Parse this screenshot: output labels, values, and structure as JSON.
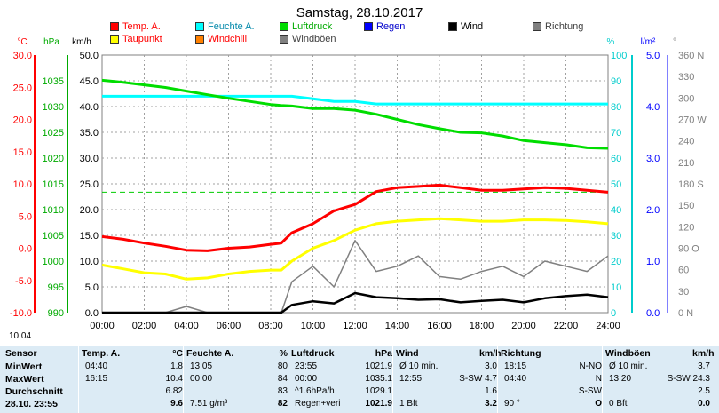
{
  "title": "Samstag, 28.10.2017",
  "legend": [
    {
      "label": "Temp. A.",
      "color": "#ff0000"
    },
    {
      "label": "Taupunkt",
      "color": "#ffff00"
    },
    {
      "label": "Feuchte A.",
      "color": "#00ffff"
    },
    {
      "label": "Windchill",
      "color": "#ff8000"
    },
    {
      "label": "Luftdruck",
      "color": "#00dd00"
    },
    {
      "label": "Windböen",
      "color": "#808080"
    },
    {
      "label": "Regen",
      "color": "#0000ff"
    },
    {
      "label": "Wind",
      "color": "#000000"
    },
    {
      "label": "Richtung",
      "color": "#808080"
    }
  ],
  "axes": {
    "temp": {
      "unit": "°C",
      "ticks": [
        "30.0",
        "25.0",
        "20.0",
        "15.0",
        "10.0",
        "5.0",
        "0.0",
        "-5.0",
        "-10.0"
      ],
      "color": "#ff0000"
    },
    "hpa": {
      "unit": "hPa",
      "ticks": [
        "1035",
        "1030",
        "1025",
        "1020",
        "1015",
        "1010",
        "1005",
        "1000",
        "995",
        "990"
      ],
      "color": "#00aa00"
    },
    "wind": {
      "unit": "km/h",
      "ticks": [
        "50.0",
        "45.0",
        "40.0",
        "35.0",
        "30.0",
        "25.0",
        "20.0",
        "15.0",
        "10.0",
        "5.0",
        "0.0"
      ],
      "color": "#000000"
    },
    "humidity": {
      "unit": "%",
      "ticks": [
        "100",
        "90",
        "80",
        "70",
        "60",
        "50",
        "40",
        "30",
        "20",
        "10",
        "0"
      ],
      "color": "#00cccc"
    },
    "rain": {
      "unit": "l/m²",
      "ticks": [
        "5.0",
        "4.0",
        "3.0",
        "2.0",
        "1.0",
        "0.0"
      ],
      "color": "#0000ff"
    },
    "direction": {
      "unit": "°",
      "ticks": [
        "360 N",
        "330",
        "300",
        "270 W",
        "240",
        "210",
        "180 S",
        "150",
        "120",
        "90 O",
        "60",
        "30",
        "0 N"
      ],
      "color": "#808080"
    },
    "x_ticks": [
      "00:00",
      "02:00",
      "04:00",
      "06:00",
      "08:00",
      "10:00",
      "12:00",
      "14:00",
      "16:00",
      "18:00",
      "20:00",
      "22:00",
      "24:00"
    ]
  },
  "current_time": "10:04",
  "chart_data": {
    "type": "line",
    "title": "Samstag, 28.10.2017",
    "x_hours": [
      0,
      1,
      2,
      3,
      4,
      5,
      6,
      7,
      8,
      8.5,
      9,
      10,
      11,
      12,
      13,
      14,
      15,
      16,
      17,
      18,
      19,
      20,
      21,
      22,
      23,
      24
    ],
    "series": [
      {
        "name": "Temp. A.",
        "axis": "temp",
        "color": "#ff0000",
        "values": [
          1.8,
          1.4,
          0.8,
          0.3,
          -0.3,
          -0.4,
          0,
          0.2,
          0.6,
          0.8,
          2.4,
          3.8,
          5.8,
          6.8,
          8.8,
          9.4,
          9.6,
          9.8,
          9.4,
          9.0,
          9.0,
          9.2,
          9.4,
          9.3,
          9.0,
          8.7
        ]
      },
      {
        "name": "Taupunkt",
        "axis": "temp",
        "color": "#ffff00",
        "values": [
          -2.6,
          -3.2,
          -3.8,
          -4.0,
          -4.8,
          -4.6,
          -4.0,
          -3.6,
          -3.4,
          -3.4,
          -2.0,
          0,
          1.2,
          2.8,
          3.8,
          4.2,
          4.4,
          4.6,
          4.4,
          4.2,
          4.2,
          4.4,
          4.4,
          4.3,
          4.1,
          3.8
        ]
      },
      {
        "name": "Feuchte A.",
        "axis": "humidity",
        "color": "#00ffff",
        "values": [
          84,
          84,
          84,
          84,
          84,
          84,
          84,
          84,
          84,
          84,
          84,
          83,
          82,
          82,
          81,
          81,
          81,
          81,
          81,
          81,
          81,
          81,
          81,
          81,
          81,
          81
        ]
      },
      {
        "name": "Luftdruck",
        "axis": "hpa",
        "color": "#00dd00",
        "values": [
          1035.1,
          1034.7,
          1034.2,
          1033.7,
          1033.0,
          1032.3,
          1031.6,
          1031.0,
          1030.4,
          1030.2,
          1030.1,
          1029.6,
          1029.6,
          1029.3,
          1028.5,
          1027.5,
          1026.5,
          1025.7,
          1025.0,
          1024.9,
          1024.3,
          1023.4,
          1023.0,
          1022.6,
          1022.0,
          1021.9
        ]
      },
      {
        "name": "Wind",
        "axis": "wind",
        "color": "#000000",
        "values": [
          0,
          0,
          0,
          0,
          0,
          0,
          0,
          0,
          0,
          0,
          1.5,
          2.2,
          1.8,
          3.8,
          3.0,
          2.8,
          2.5,
          2.6,
          2.0,
          2.3,
          2.5,
          2.0,
          2.8,
          3.2,
          3.5,
          3.0
        ]
      },
      {
        "name": "Windböen",
        "axis": "wind",
        "color": "#808080",
        "values": [
          0,
          0,
          0,
          0,
          1.2,
          0,
          0,
          0,
          0,
          0,
          6.0,
          9.0,
          5.0,
          14.0,
          8.0,
          9.0,
          11.0,
          7.0,
          6.5,
          8.0,
          9.0,
          7.0,
          10.0,
          9.0,
          8.0,
          11.0
        ]
      }
    ],
    "reference_line": {
      "axis": "temp",
      "value": 8.7,
      "color": "#00cc00",
      "style": "dashed"
    },
    "xlim": [
      0,
      24
    ],
    "grid": true
  },
  "table": {
    "columns": [
      {
        "title": "Sensor"
      },
      {
        "title": "Temp. A.",
        "unit": "°C"
      },
      {
        "title": "Feuchte A.",
        "unit": "%"
      },
      {
        "title": "Luftdruck",
        "unit": "hPa"
      },
      {
        "title": "Wind",
        "unit": "km/h"
      },
      {
        "title": "Richtung",
        "unit": ""
      },
      {
        "title": "Windböen",
        "unit": "km/h"
      }
    ],
    "rows": [
      {
        "label": "MinWert",
        "temp": [
          "04:40",
          "1.8"
        ],
        "hum": [
          "13:05",
          "80"
        ],
        "press": [
          "23:55",
          "1021.9"
        ],
        "wind": [
          "Ø 10 min.",
          "3.0"
        ],
        "dir": [
          "18:15",
          "N-NO"
        ],
        "gust": [
          "Ø 10 min.",
          "3.7"
        ]
      },
      {
        "label": "MaxWert",
        "temp": [
          "16:15",
          "10.4"
        ],
        "hum": [
          "00:00",
          "84"
        ],
        "press": [
          "00:00",
          "1035.1"
        ],
        "wind": [
          "12:55",
          "S-SW 4.7"
        ],
        "dir": [
          "04:40",
          "N"
        ],
        "gust": [
          "13:20",
          "S-SW 24.3"
        ]
      },
      {
        "label": "Durchschnitt",
        "temp": [
          "",
          "6.82"
        ],
        "hum": [
          "",
          "83"
        ],
        "press": [
          "^1.6hPa/h",
          "1029.1"
        ],
        "wind": [
          "",
          "1.6"
        ],
        "dir": [
          "",
          "S-SW"
        ],
        "gust": [
          "",
          "2.5"
        ]
      },
      {
        "label": "28.10. 23:55",
        "temp": [
          "",
          "9.6"
        ],
        "hum": [
          "7.51 g/m³",
          "82"
        ],
        "press": [
          "Regen+veri",
          "1021.9"
        ],
        "wind": [
          "1 Bft",
          "3.2"
        ],
        "dir": [
          "90 °",
          "O"
        ],
        "gust": [
          "0 Bft",
          "0.0"
        ]
      }
    ]
  }
}
